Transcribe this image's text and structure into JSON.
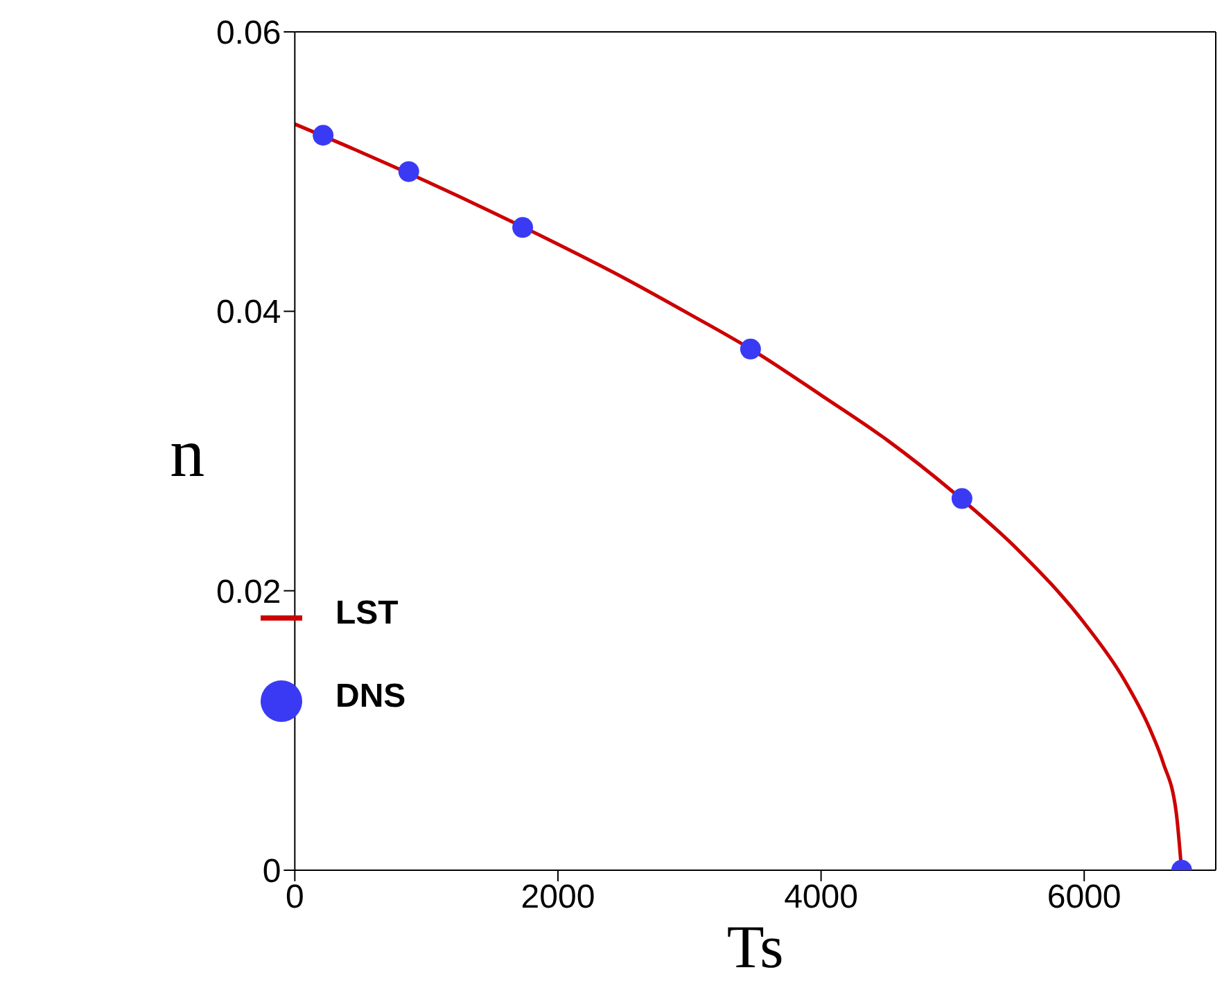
{
  "chart_data": {
    "type": "line",
    "xlabel": "Ts",
    "ylabel": "n",
    "xlim": [
      0,
      7000
    ],
    "ylim": [
      0,
      0.06
    ],
    "xticks": [
      0,
      2000,
      4000,
      6000
    ],
    "yticks": [
      0,
      0.02,
      0.04,
      0.06
    ],
    "legend": "left",
    "series": [
      {
        "name": "LST",
        "type": "line",
        "color": "#cc0000",
        "marker": "none",
        "line_style": "solid",
        "x": [
          0,
          500,
          1000,
          1500,
          2000,
          2500,
          3000,
          3500,
          4000,
          4500,
          5000,
          5500,
          6000,
          6300,
          6500,
          6600,
          6700,
          6740
        ],
        "values": [
          0.0534,
          0.0514,
          0.0493,
          0.0471,
          0.0448,
          0.0424,
          0.0398,
          0.0371,
          0.034,
          0.0308,
          0.0271,
          0.0229,
          0.0177,
          0.0137,
          0.0101,
          0.0077,
          0.0041,
          0
        ]
      },
      {
        "name": "DNS",
        "type": "scatter",
        "color": "#3a3af5",
        "marker": "circle",
        "x": [
          215,
          866,
          1732,
          3464,
          5071,
          6741
        ],
        "values": [
          0.0526,
          0.05,
          0.046,
          0.0373,
          0.0266,
          0
        ]
      }
    ]
  }
}
